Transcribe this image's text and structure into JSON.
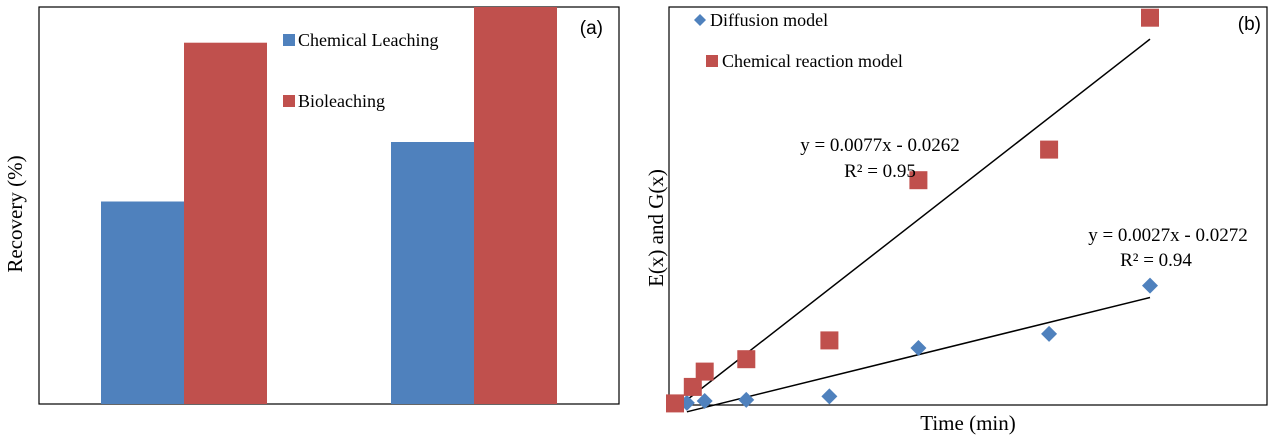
{
  "chart_data": [
    {
      "type": "bar",
      "panel_label": "(a)",
      "ylabel": "Recovery (%)",
      "xlabel": "",
      "categories": [
        "",
        ""
      ],
      "ylim": [
        0,
        100
      ],
      "grid": false,
      "legend_position": "top-right",
      "series": [
        {
          "name": "Chemical Leaching",
          "values": [
            51,
            66
          ],
          "color": "#4f81bd"
        },
        {
          "name": "Bioleaching",
          "values": [
            91,
            100
          ],
          "color": "#c0504d"
        }
      ]
    },
    {
      "type": "scatter",
      "panel_label": "(b)",
      "xlabel": "Time (min)",
      "ylabel": "E(x) and G(x)",
      "xlim": [
        0,
        80
      ],
      "ylim": [
        -0.03,
        0.6
      ],
      "grid": false,
      "legend_position": "top-left",
      "series": [
        {
          "name": "Diffusion model",
          "marker": "diamond",
          "color": "#4f81bd",
          "x": [
            2,
            5,
            12,
            26,
            41,
            63,
            80
          ],
          "y": [
            -0.028,
            -0.025,
            -0.023,
            -0.017,
            0.065,
            0.089,
            0.171
          ]
        },
        {
          "name": "Chemical reaction model",
          "marker": "square",
          "color": "#c0504d",
          "x": [
            0,
            3,
            5,
            12,
            26,
            41,
            63,
            80
          ],
          "y": [
            -0.029,
            -0.001,
            0.025,
            0.046,
            0.078,
            0.35,
            0.402,
            0.626
          ]
        }
      ],
      "trendlines": [
        {
          "series": "Chemical reaction model",
          "equation": "y = 0.0077x - 0.0262",
          "r2": "R² = 0.95",
          "x_range": [
            2,
            80
          ]
        },
        {
          "series": "Diffusion model",
          "equation": "y = 0.0027x - 0.0272",
          "r2": "R² = 0.94",
          "x_range": [
            2,
            80
          ]
        }
      ]
    }
  ]
}
